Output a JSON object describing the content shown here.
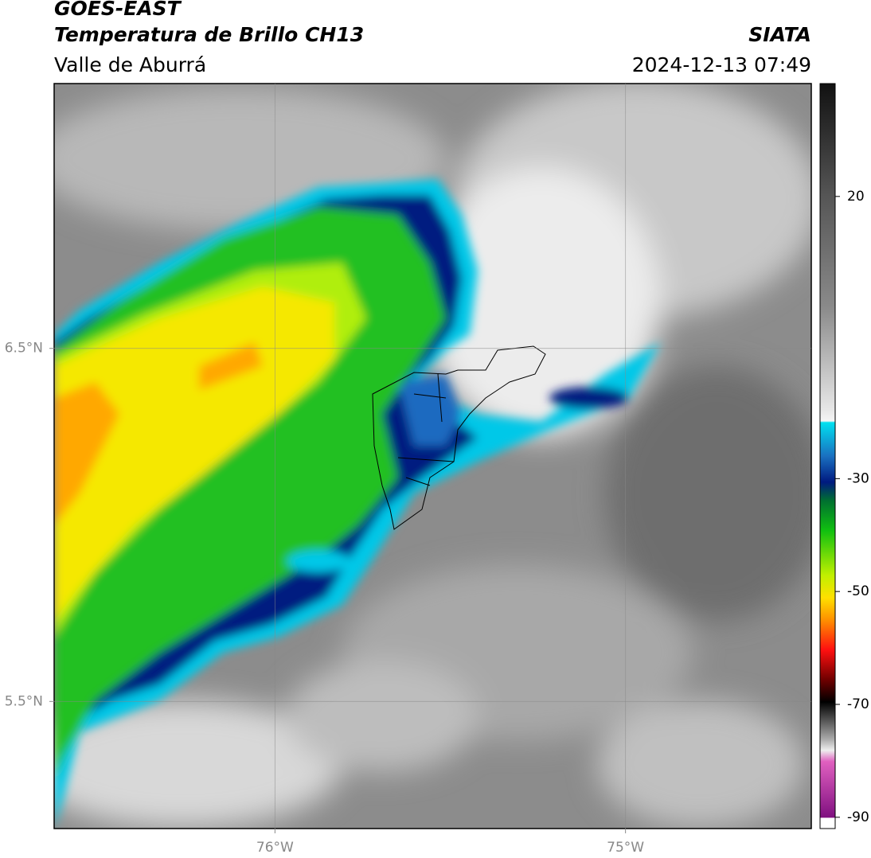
{
  "header": {
    "satellite": "GOES-EAST",
    "product": "Temperatura de Brillo CH13",
    "region": "Valle de Aburrá",
    "source": "SIATA",
    "datetime": "2024-12-13 07:49"
  },
  "map": {
    "xlim": [
      -76.63,
      -74.47
    ],
    "ylim": [
      5.14,
      7.25
    ],
    "xticks": [
      {
        "value": -76,
        "label": "76°W"
      },
      {
        "value": -75,
        "label": "75°W"
      }
    ],
    "yticks": [
      {
        "value": 6.5,
        "label": "6.5°N"
      },
      {
        "value": 5.5,
        "label": "5.5°N"
      }
    ],
    "grid": true
  },
  "colorbar": {
    "lim": [
      -92,
      40
    ],
    "ticks": [
      20,
      -30,
      -50,
      -70,
      -90
    ]
  }
}
